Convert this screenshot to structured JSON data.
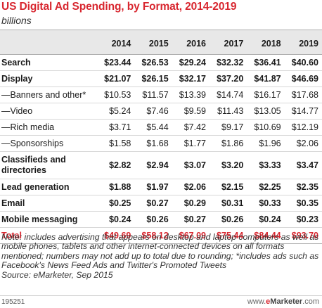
{
  "title": "US Digital Ad Spending, by Format, 2014-2019",
  "subtitle": "billions",
  "columns": [
    "",
    "2014",
    "2015",
    "2016",
    "2017",
    "2018",
    "2019"
  ],
  "rows": [
    {
      "label": "Search",
      "values": [
        "$23.44",
        "$26.53",
        "$29.24",
        "$32.32",
        "$36.41",
        "$40.60"
      ]
    },
    {
      "label": "Display",
      "values": [
        "$21.07",
        "$26.15",
        "$32.17",
        "$37.20",
        "$41.87",
        "$46.69"
      ]
    },
    {
      "label": "—Banners and other*",
      "values": [
        "$10.53",
        "$11.57",
        "$13.39",
        "$14.74",
        "$16.17",
        "$17.68"
      ]
    },
    {
      "label": "—Video",
      "values": [
        "$5.24",
        "$7.46",
        "$9.59",
        "$11.43",
        "$13.05",
        "$14.77"
      ]
    },
    {
      "label": "—Rich media",
      "values": [
        "$3.71",
        "$5.44",
        "$7.42",
        "$9.17",
        "$10.69",
        "$12.19"
      ]
    },
    {
      "label": "—Sponsorships",
      "values": [
        "$1.58",
        "$1.68",
        "$1.77",
        "$1.86",
        "$1.96",
        "$2.06"
      ]
    },
    {
      "label": "Classifieds and directories",
      "values": [
        "$2.82",
        "$2.94",
        "$3.07",
        "$3.20",
        "$3.33",
        "$3.47"
      ]
    },
    {
      "label": "Lead generation",
      "values": [
        "$1.88",
        "$1.97",
        "$2.06",
        "$2.15",
        "$2.25",
        "$2.35"
      ]
    },
    {
      "label": "Email",
      "values": [
        "$0.25",
        "$0.27",
        "$0.29",
        "$0.31",
        "$0.33",
        "$0.35"
      ]
    },
    {
      "label": "Mobile messaging",
      "values": [
        "$0.24",
        "$0.26",
        "$0.27",
        "$0.26",
        "$0.24",
        "$0.23"
      ]
    },
    {
      "label": "Total",
      "values": [
        "$49.69",
        "$58.12",
        "$67.09",
        "$75.44",
        "$84.44",
        "$93.70"
      ]
    }
  ],
  "note": "Note: includes advertising that appears on desktop and laptop computers as well as mobile phones, tablets and other internet-connected devices on all formats mentioned; numbers may not add up to total due to rounding; *includes ads such as Facebook's News Feed Ads and Twitter's Promoted Tweets",
  "source": "Source: eMarketer, Sep 2015",
  "footer": {
    "id": "195251",
    "brand_prefix": "www.",
    "brand_e": "e",
    "brand_main": "Marketer",
    "brand_suffix": ".com"
  }
}
